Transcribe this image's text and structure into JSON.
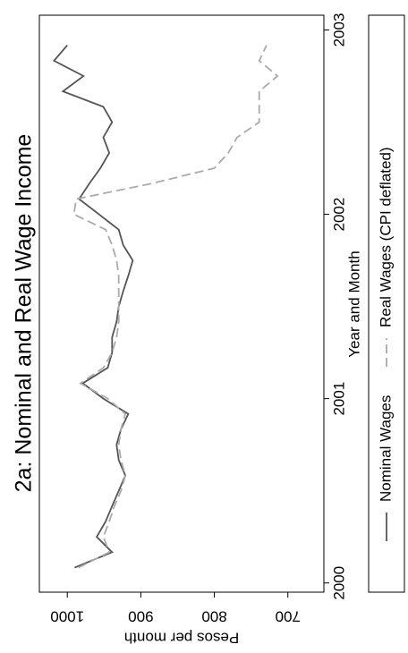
{
  "chart_data": {
    "type": "line",
    "title": "2a: Nominal and Real Wage Income",
    "x_label": "Year and Month",
    "y_label": "Pesos per month",
    "xlim": [
      1999.95,
      2003.08
    ],
    "xticks": [
      2000,
      2001,
      2002,
      2003
    ],
    "ylim": [
      651,
      1038
    ],
    "yticks": [
      700,
      800,
      900,
      1000
    ],
    "legend_position": "bottom",
    "series": [
      {
        "name": "Nominal Wages",
        "color": "#555555",
        "dash": "solid",
        "x": [
          2000.083,
          2000.167,
          2000.25,
          2000.333,
          2000.417,
          2000.5,
          2000.583,
          2000.667,
          2000.75,
          2000.833,
          2000.917,
          2001.0,
          2001.083,
          2001.167,
          2001.25,
          2001.333,
          2001.417,
          2001.5,
          2001.583,
          2001.667,
          2001.75,
          2001.833,
          2001.917,
          2002.0,
          2002.083,
          2002.167,
          2002.25,
          2002.333,
          2002.417,
          2002.5,
          2002.583,
          2002.667,
          2002.75,
          2002.833,
          2002.917
        ],
        "values": [
          990,
          939,
          960,
          948,
          939,
          930,
          921,
          930,
          933,
          927,
          917,
          951,
          979,
          945,
          939,
          939,
          933,
          930,
          924,
          917,
          911,
          924,
          930,
          957,
          984,
          970,
          955,
          943,
          951,
          939,
          951,
          1006,
          978,
          1018,
          1000
        ]
      },
      {
        "name": "Real Wages (CPI deflated)",
        "color": "#aaaaaa",
        "dash": "dashed",
        "x": [
          2000.083,
          2000.167,
          2000.25,
          2000.333,
          2000.417,
          2000.5,
          2000.583,
          2000.667,
          2000.75,
          2000.833,
          2000.917,
          2001.0,
          2001.083,
          2001.167,
          2001.25,
          2001.333,
          2001.417,
          2001.5,
          2001.583,
          2001.667,
          2001.75,
          2001.833,
          2001.917,
          2002.0,
          2002.083,
          2002.167,
          2002.25,
          2002.333,
          2002.417,
          2002.5,
          2002.583,
          2002.667,
          2002.75,
          2002.833,
          2002.917
        ],
        "values": [
          985,
          943,
          951,
          943,
          936,
          927,
          921,
          927,
          930,
          927,
          921,
          945,
          982,
          951,
          939,
          933,
          930,
          930,
          930,
          930,
          933,
          939,
          948,
          991,
          988,
          885,
          800,
          781,
          769,
          739,
          739,
          739,
          714,
          739,
          729
        ]
      }
    ]
  }
}
